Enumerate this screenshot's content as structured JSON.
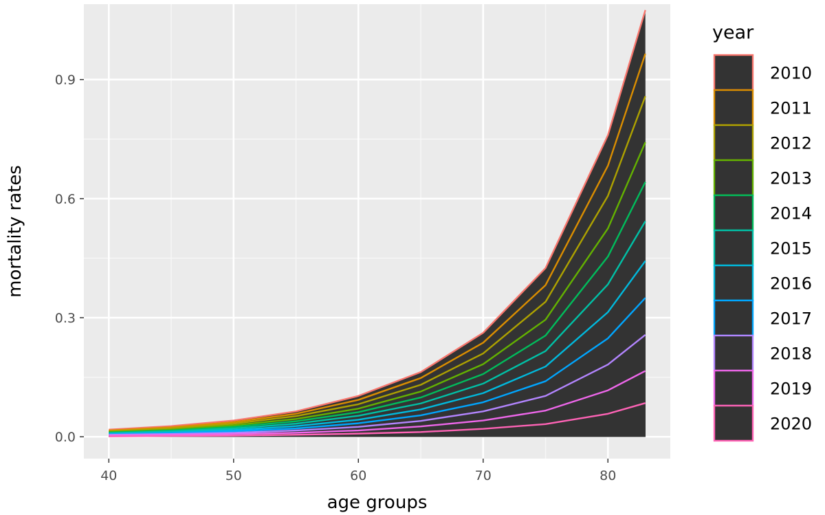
{
  "chart_data": {
    "type": "area",
    "title": "",
    "xlabel": "age groups",
    "ylabel": "mortality rates",
    "xlim": [
      38,
      85
    ],
    "ylim": [
      -0.055,
      1.09
    ],
    "xticks": [
      40,
      50,
      60,
      70,
      80
    ],
    "xtick_labels": [
      "40",
      "50",
      "60",
      "70",
      "80"
    ],
    "yticks": [
      0.0,
      0.3,
      0.6,
      0.9
    ],
    "ytick_labels": [
      "0.0",
      "0.3",
      "0.6",
      "0.9"
    ],
    "grid": true,
    "panel_background": "#ebebeb",
    "area_fill": "#333333",
    "legend": {
      "title": "year",
      "position": "right"
    },
    "x": [
      40,
      45,
      50,
      55,
      60,
      65,
      70,
      75,
      80,
      83
    ],
    "series": [
      {
        "name": "2010",
        "color": "#F8766D",
        "values": [
          0.018,
          0.027,
          0.041,
          0.064,
          0.103,
          0.163,
          0.262,
          0.425,
          0.76,
          1.075
        ]
      },
      {
        "name": "2011",
        "color": "#DB8E00",
        "values": [
          0.016,
          0.024,
          0.037,
          0.058,
          0.093,
          0.148,
          0.237,
          0.382,
          0.683,
          0.965
        ]
      },
      {
        "name": "2012",
        "color": "#AEA200",
        "values": [
          0.014,
          0.021,
          0.033,
          0.052,
          0.082,
          0.131,
          0.21,
          0.34,
          0.607,
          0.858
        ]
      },
      {
        "name": "2013",
        "color": "#64B200",
        "values": [
          0.012,
          0.018,
          0.029,
          0.045,
          0.071,
          0.114,
          0.183,
          0.295,
          0.525,
          0.742
        ]
      },
      {
        "name": "2014",
        "color": "#00BD5C",
        "values": [
          0.011,
          0.016,
          0.025,
          0.039,
          0.062,
          0.099,
          0.158,
          0.255,
          0.454,
          0.642
        ]
      },
      {
        "name": "2015",
        "color": "#00C1A7",
        "values": [
          0.009,
          0.014,
          0.021,
          0.033,
          0.053,
          0.084,
          0.134,
          0.216,
          0.384,
          0.543
        ]
      },
      {
        "name": "2016",
        "color": "#00BADE",
        "values": [
          0.008,
          0.011,
          0.017,
          0.027,
          0.043,
          0.069,
          0.11,
          0.177,
          0.314,
          0.443
        ]
      },
      {
        "name": "2017",
        "color": "#00A6FF",
        "values": [
          0.006,
          0.009,
          0.014,
          0.021,
          0.034,
          0.054,
          0.087,
          0.14,
          0.248,
          0.35
        ]
      },
      {
        "name": "2018",
        "color": "#B385FF",
        "values": [
          0.005,
          0.007,
          0.01,
          0.016,
          0.025,
          0.04,
          0.064,
          0.103,
          0.182,
          0.257
        ]
      },
      {
        "name": "2019",
        "color": "#EF67EB",
        "values": [
          0.003,
          0.005,
          0.007,
          0.01,
          0.016,
          0.026,
          0.041,
          0.066,
          0.117,
          0.166
        ]
      },
      {
        "name": "2020",
        "color": "#FF63B6",
        "values": [
          0.001,
          0.002,
          0.003,
          0.005,
          0.008,
          0.012,
          0.02,
          0.032,
          0.058,
          0.085
        ]
      }
    ]
  }
}
